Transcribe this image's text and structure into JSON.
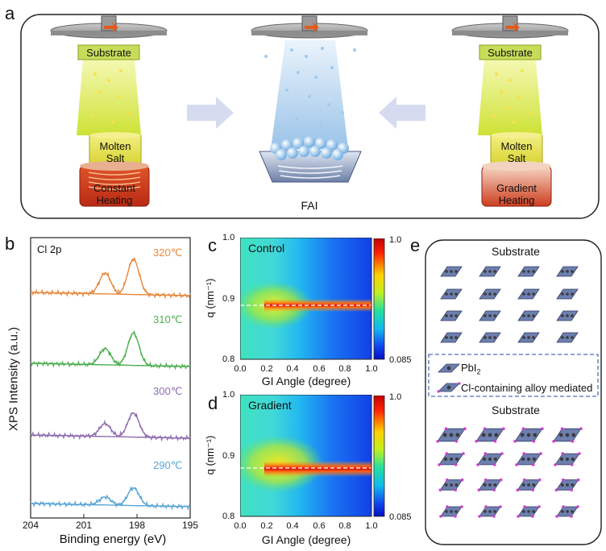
{
  "panel_a": {
    "letter": "a",
    "substrate_label": "Substrate",
    "molten_salt_label": "Molten\nSalt",
    "left_heating_label": "Constant\nHeating",
    "right_heating_label": "Gradient\nHeating",
    "fai_label": "FAI"
  },
  "panel_b": {
    "letter": "b",
    "annotation": "Cl 2p",
    "ylabel": "XPS Intensity (a.u.)",
    "xlabel": "Binding energy (eV)",
    "xticks": [
      "204",
      "201",
      "198",
      "195"
    ],
    "temperatures": [
      {
        "label": "320℃",
        "color": "#e8883a"
      },
      {
        "label": "310℃",
        "color": "#4caf50"
      },
      {
        "label": "300℃",
        "color": "#8e6bb0"
      },
      {
        "label": "290℃",
        "color": "#5aa6d6"
      }
    ]
  },
  "panel_c": {
    "letter": "c",
    "title": "Control",
    "ylabel": "q (nm⁻¹)",
    "xlabel": "GI Angle (degree)",
    "yticks": [
      "1.0",
      "0.9",
      "0.8"
    ],
    "xticks": [
      "0.0",
      "0.2",
      "0.4",
      "0.6",
      "0.8",
      "1.0"
    ],
    "colorbar_max": "1.0",
    "colorbar_min": "0.085",
    "peak_q": 0.893
  },
  "panel_d": {
    "letter": "d",
    "title": "Gradient",
    "ylabel": "q (nm⁻¹)",
    "xlabel": "GI Angle (degree)",
    "yticks": [
      "1.0",
      "0.9",
      "0.8"
    ],
    "xticks": [
      "0.0",
      "0.2",
      "0.4",
      "0.6",
      "0.8",
      "1.0"
    ],
    "colorbar_max": "1.0",
    "colorbar_min": "0.085",
    "peak_q": 0.88
  },
  "panel_e": {
    "letter": "e",
    "top_label": "Substrate",
    "bottom_label": "Substrate",
    "legend_pbi2": "PbI",
    "legend_pbi2_sub": "2",
    "legend_alloy": "Cl-containing alloy mediated"
  },
  "chart_data": [
    {
      "type": "line",
      "title": "Cl 2p",
      "xlabel": "Binding energy (eV)",
      "ylabel": "XPS Intensity (a.u.)",
      "xlim": [
        204,
        195
      ],
      "series": [
        {
          "name": "320℃",
          "peaks_eV": [
            199.8,
            198.2
          ]
        },
        {
          "name": "310℃",
          "peaks_eV": [
            199.8,
            198.2
          ]
        },
        {
          "name": "300℃",
          "peaks_eV": [
            199.8,
            198.2
          ]
        },
        {
          "name": "290℃",
          "peaks_eV": [
            199.8,
            198.2
          ]
        }
      ]
    },
    {
      "type": "heatmap",
      "title": "Control",
      "xlabel": "GI Angle (degree)",
      "ylabel": "q (nm⁻¹)",
      "xlim": [
        0.0,
        1.0
      ],
      "ylim": [
        0.8,
        1.0
      ],
      "colorbar_range": [
        0.085,
        1.0
      ],
      "peak_q": 0.893
    },
    {
      "type": "heatmap",
      "title": "Gradient",
      "xlabel": "GI Angle (degree)",
      "ylabel": "q (nm⁻¹)",
      "xlim": [
        0.0,
        1.0
      ],
      "ylim": [
        0.8,
        1.0
      ],
      "colorbar_range": [
        0.085,
        1.0
      ],
      "peak_q": 0.88
    }
  ]
}
